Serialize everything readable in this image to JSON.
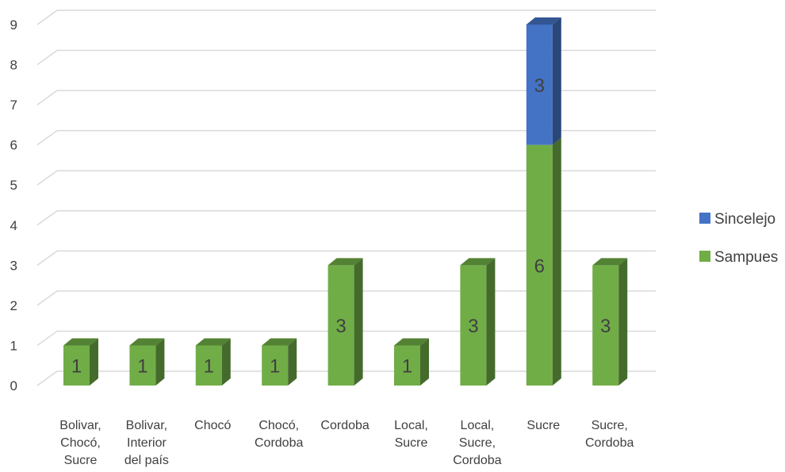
{
  "chart_data": {
    "type": "bar",
    "stacked": true,
    "three_d": true,
    "categories": [
      [
        "Bolivar,",
        "Chocó,",
        "Sucre"
      ],
      [
        "Bolivar,",
        "Interior",
        "del país"
      ],
      [
        "Chocó"
      ],
      [
        "Chocó,",
        "Cordoba"
      ],
      [
        "Cordoba"
      ],
      [
        "Local,",
        "Sucre"
      ],
      [
        "Local,",
        "Sucre,",
        "Cordoba"
      ],
      [
        "Sucre"
      ],
      [
        "Sucre,",
        "Cordoba"
      ]
    ],
    "series": [
      {
        "name": "Sampues",
        "color": "#70ad47",
        "values": [
          1,
          1,
          1,
          1,
          3,
          1,
          3,
          6,
          3
        ]
      },
      {
        "name": "Sincelejo",
        "color": "#4472c4",
        "values": [
          0,
          0,
          0,
          0,
          0,
          0,
          0,
          3,
          0
        ]
      }
    ],
    "title": "",
    "xlabel": "",
    "ylabel": "",
    "ylim": [
      0,
      9
    ],
    "yticks": [
      0,
      1,
      2,
      3,
      4,
      5,
      6,
      7,
      8,
      9
    ],
    "grid": true,
    "legend": "right",
    "legend_order": [
      "Sincelejo",
      "Sampues"
    ]
  }
}
